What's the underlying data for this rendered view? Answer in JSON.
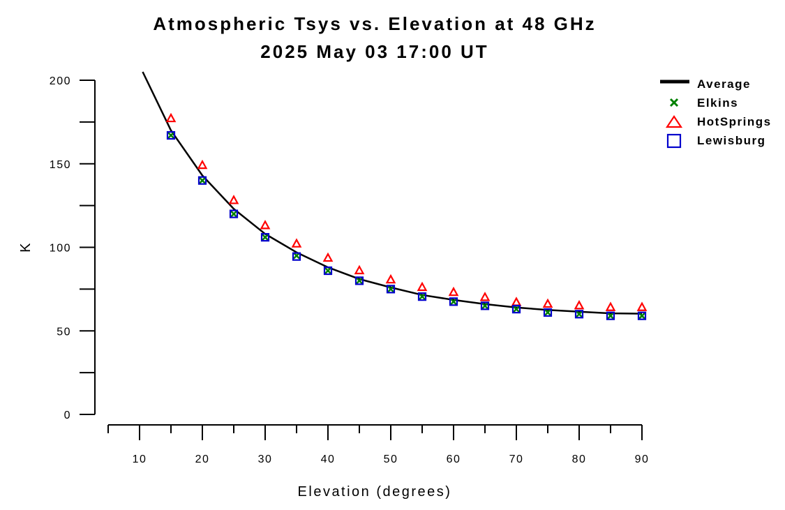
{
  "chart_data": {
    "type": "scatter",
    "title": "Atmospheric Tsys vs. Elevation at 48 GHz",
    "subtitle": "2025 May 03 17:00 UT",
    "xlabel": "Elevation (degrees)",
    "ylabel": "K",
    "xlim": [
      5,
      90
    ],
    "ylim": [
      0,
      200
    ],
    "x_ticks": [
      10,
      20,
      30,
      40,
      50,
      60,
      70,
      80,
      90
    ],
    "y_ticks": [
      0,
      50,
      100,
      150,
      200
    ],
    "grid": false,
    "legend_position": "top-right",
    "x": [
      15,
      20,
      25,
      30,
      35,
      40,
      45,
      50,
      55,
      60,
      65,
      70,
      75,
      80,
      85,
      90
    ],
    "series": [
      {
        "name": "Average",
        "style": "line",
        "color": "#000000",
        "x": [
          10.5,
          15,
          20,
          25,
          30,
          35,
          40,
          45,
          50,
          55,
          60,
          65,
          70,
          75,
          80,
          85,
          90
        ],
        "values": [
          205,
          170,
          143,
          123,
          108,
          97,
          88,
          81,
          76,
          71.5,
          68.5,
          66,
          64,
          62.5,
          61.5,
          60.5,
          60.3
        ]
      },
      {
        "name": "Elkins",
        "style": "x",
        "color": "#008000",
        "values": [
          167,
          140,
          120,
          106,
          95,
          86,
          80,
          75,
          70.5,
          67.5,
          65,
          63,
          61,
          60,
          59,
          59
        ]
      },
      {
        "name": "HotSprings",
        "style": "triangle",
        "color": "#ff0000",
        "values": [
          177,
          149,
          128,
          113,
          102,
          93.5,
          86,
          80.5,
          76,
          73,
          70,
          67,
          66,
          65,
          64,
          64
        ]
      },
      {
        "name": "Lewisburg",
        "style": "square",
        "color": "#0000cc",
        "values": [
          167,
          140,
          120,
          106,
          94.5,
          86,
          80,
          75,
          70.5,
          67.5,
          65,
          63,
          61,
          60,
          59,
          59
        ]
      }
    ]
  }
}
